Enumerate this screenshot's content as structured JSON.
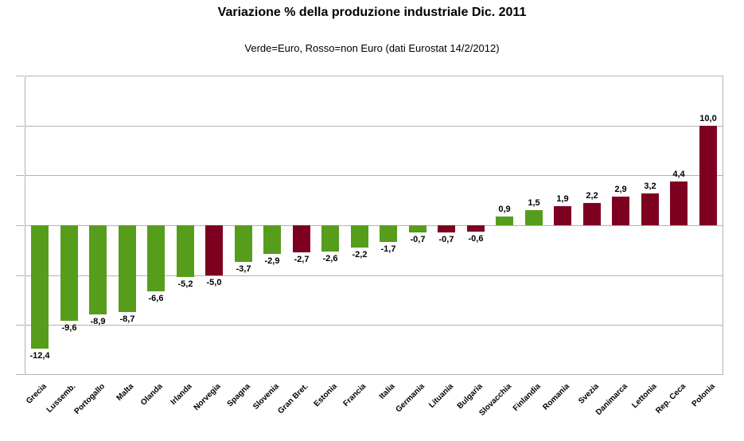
{
  "colors": {
    "euro": "#579D1C",
    "non_euro": "#7E0021",
    "grid": "#B3B3B3",
    "text": "#000000",
    "background": "#FFFFFF"
  },
  "chart_data": {
    "type": "bar",
    "title": "Variazione % della produzione industriale Dic. 2011",
    "subtitle": "Verde=Euro, Rosso=non Euro (dati Eurostat 14/2/2012)",
    "categories": [
      "Grecia",
      "Lussemb.",
      "Portogallo",
      "Malta",
      "Olanda",
      "Irlanda",
      "Norvegia",
      "Spagna",
      "Slovenia",
      "Gran Bret.",
      "Estonia",
      "Francia",
      "Italia",
      "Germania",
      "Lituania",
      "Bulgaria",
      "Slovacchia",
      "Finlandia",
      "Romania",
      "Svezia",
      "Danimarca",
      "Lettonia",
      "Rep. Ceca",
      "Polonia"
    ],
    "values": [
      -12.4,
      -9.6,
      -8.9,
      -8.7,
      -6.6,
      -5.2,
      -5.0,
      -3.7,
      -2.9,
      -2.7,
      -2.6,
      -2.2,
      -1.7,
      -0.7,
      -0.7,
      -0.6,
      0.9,
      1.5,
      1.9,
      2.2,
      2.9,
      3.2,
      4.4,
      10.0
    ],
    "value_labels": [
      "-12,4",
      "-9,6",
      "-8,9",
      "-8,7",
      "-6,6",
      "-5,2",
      "-5,0",
      "-3,7",
      "-2,9",
      "-2,7",
      "-2,6",
      "-2,2",
      "-1,7",
      "-0,7",
      "-0,7",
      "-0,6",
      "0,9",
      "1,5",
      "1,9",
      "2,2",
      "2,9",
      "3,2",
      "4,4",
      "10,0"
    ],
    "groups": [
      "euro",
      "euro",
      "euro",
      "euro",
      "euro",
      "euro",
      "non_euro",
      "euro",
      "euro",
      "non_euro",
      "euro",
      "euro",
      "euro",
      "euro",
      "non_euro",
      "non_euro",
      "euro",
      "euro",
      "non_euro",
      "non_euro",
      "non_euro",
      "non_euro",
      "non_euro",
      "non_euro"
    ],
    "xlabel": "",
    "ylabel": "",
    "ylim": [
      -15,
      15
    ],
    "grid_step": 5,
    "grid": true,
    "y_tick_labels_visible": false,
    "legend": "none"
  }
}
